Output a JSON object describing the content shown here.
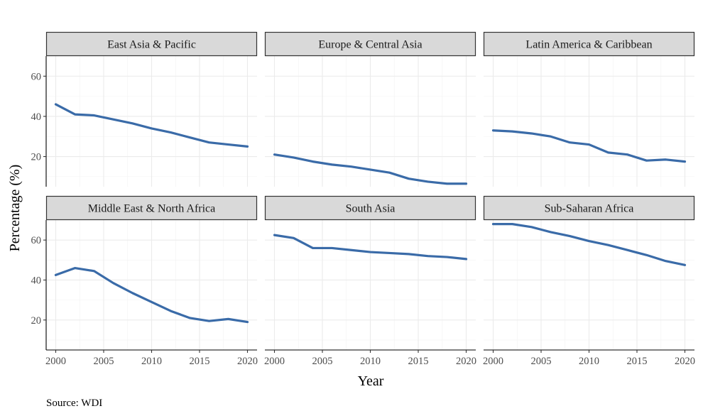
{
  "chart_data": {
    "type": "line",
    "layout": "facet-grid",
    "x_label": "Year",
    "y_label": "Percentage (%)",
    "caption": "Source: WDI",
    "xlim": [
      1999,
      2021
    ],
    "ylim": [
      5,
      70
    ],
    "x_ticks": [
      2000,
      2005,
      2010,
      2015,
      2020
    ],
    "y_ticks": [
      20,
      40,
      60
    ],
    "line_color": "#3a6ba8",
    "grid": true,
    "panels": [
      {
        "title": "East Asia & Pacific",
        "x": [
          2000,
          2002,
          2004,
          2006,
          2008,
          2010,
          2012,
          2014,
          2016,
          2018,
          2020
        ],
        "y": [
          46,
          41,
          40.5,
          38.5,
          36.5,
          34,
          32,
          29.5,
          27,
          26,
          25
        ]
      },
      {
        "title": "Europe & Central Asia",
        "x": [
          2000,
          2002,
          2004,
          2006,
          2008,
          2010,
          2012,
          2014,
          2016,
          2018,
          2020
        ],
        "y": [
          21,
          19.5,
          17.5,
          16,
          15,
          13.5,
          12,
          9,
          7.5,
          6.5,
          6.5
        ]
      },
      {
        "title": "Latin America & Caribbean",
        "x": [
          2000,
          2002,
          2004,
          2006,
          2008,
          2010,
          2012,
          2014,
          2016,
          2018,
          2020
        ],
        "y": [
          33,
          32.5,
          31.5,
          30,
          27,
          26,
          22,
          21,
          18,
          18.5,
          17.5
        ]
      },
      {
        "title": "Middle East & North Africa",
        "x": [
          2000,
          2002,
          2004,
          2006,
          2008,
          2010,
          2012,
          2014,
          2016,
          2018,
          2020
        ],
        "y": [
          42.5,
          46,
          44.5,
          38.5,
          33.5,
          29,
          24.5,
          21,
          19.5,
          20.5,
          19
        ]
      },
      {
        "title": "South Asia",
        "x": [
          2000,
          2002,
          2004,
          2006,
          2008,
          2010,
          2012,
          2014,
          2016,
          2018,
          2020
        ],
        "y": [
          62.5,
          61,
          56,
          56,
          55,
          54,
          53.5,
          53,
          52,
          51.5,
          50.5
        ]
      },
      {
        "title": "Sub-Saharan Africa",
        "x": [
          2000,
          2002,
          2004,
          2006,
          2008,
          2010,
          2012,
          2014,
          2016,
          2018,
          2020
        ],
        "y": [
          68,
          68,
          66.5,
          64,
          62,
          59.5,
          57.5,
          55,
          52.5,
          49.5,
          47.5
        ]
      }
    ]
  }
}
